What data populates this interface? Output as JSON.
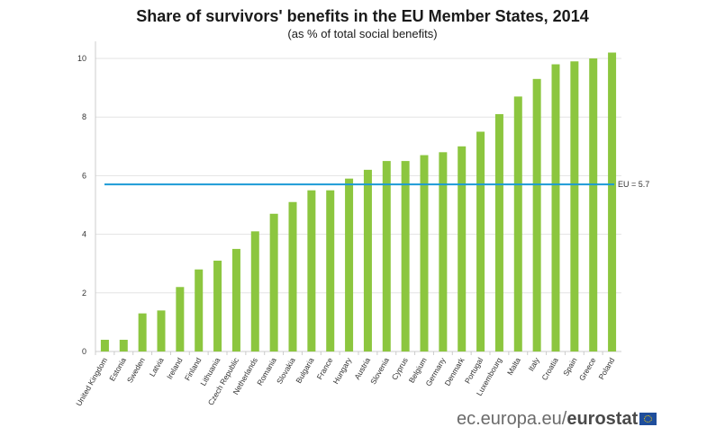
{
  "chart_data": {
    "type": "bar",
    "title": "Share of survivors' benefits in the EU Member States, 2014",
    "subtitle": "(as % of total social benefits)",
    "xlabel": "",
    "ylabel": "",
    "ylim": [
      0,
      10.5
    ],
    "yticks": [
      0,
      2,
      4,
      6,
      8,
      10
    ],
    "grid": true,
    "categories": [
      "United Kingdom",
      "Estonia",
      "Sweden",
      "Latvia",
      "Ireland",
      "Finland",
      "Lithuania",
      "Czech Republic",
      "Netherlands",
      "Romania",
      "Slovakia",
      "Bulgaria",
      "France",
      "Hungary",
      "Austria",
      "Slovenia",
      "Cyprus",
      "Belgium",
      "Germany",
      "Denmark",
      "Portugal",
      "Luxembourg",
      "Malta",
      "Italy",
      "Croatia",
      "Spain",
      "Greece",
      "Poland"
    ],
    "values": [
      0.4,
      0.4,
      1.3,
      1.4,
      2.2,
      2.8,
      3.1,
      3.5,
      4.1,
      4.7,
      5.1,
      5.5,
      5.5,
      5.9,
      6.2,
      6.5,
      6.5,
      6.7,
      6.8,
      7.0,
      7.5,
      8.1,
      8.7,
      9.3,
      9.8,
      9.9,
      10.0,
      10.2
    ],
    "reference_line": {
      "label": "EU = 5.7",
      "value": 5.7
    },
    "colors": {
      "bar": "#8cc63f",
      "reference": "#1b9ad6",
      "grid": "#e3e3e3"
    }
  },
  "footer": {
    "domain_text": "ec.europa.eu/",
    "brand_text": "eurostat",
    "logo_icon": "eu-flag-icon"
  }
}
